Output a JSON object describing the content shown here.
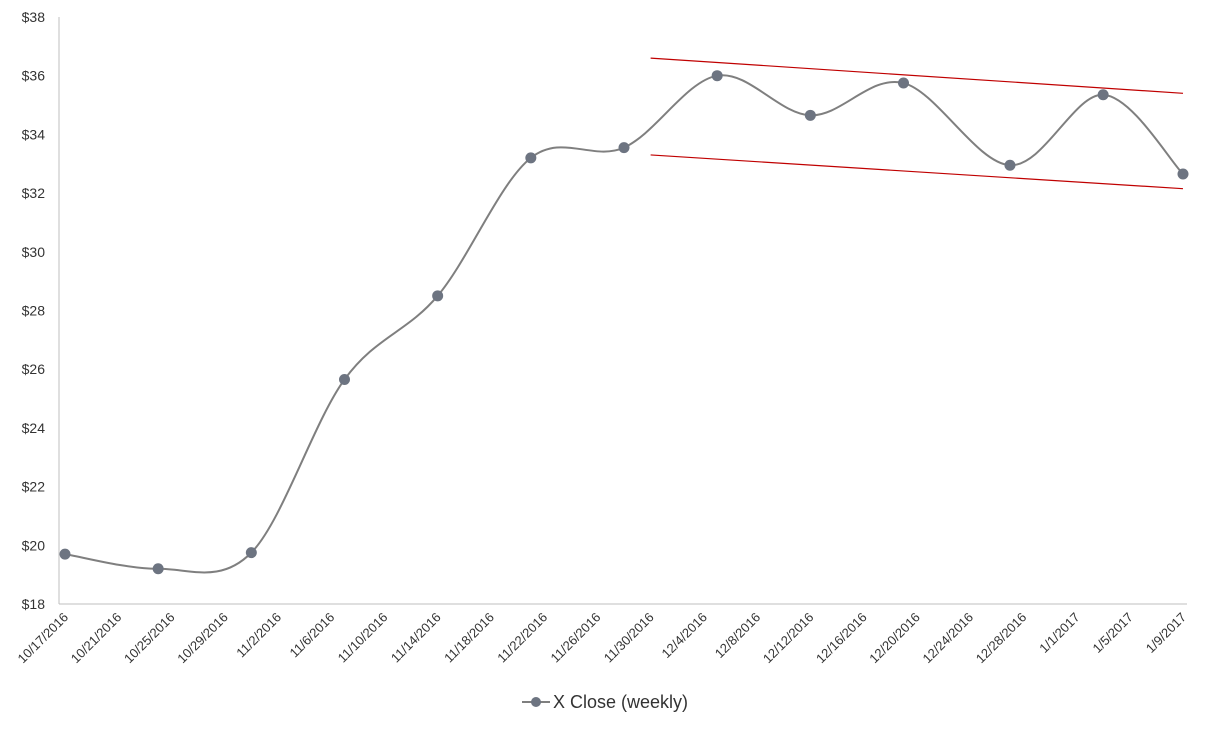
{
  "chart_data": {
    "type": "line",
    "title": "",
    "xlabel": "",
    "ylabel": "",
    "ylim": [
      18,
      38
    ],
    "y_ticks": [
      "$18",
      "$20",
      "$22",
      "$24",
      "$26",
      "$28",
      "$30",
      "$32",
      "$34",
      "$36",
      "$38"
    ],
    "x_range": [
      "2016-10-17",
      "2017-01-09"
    ],
    "x_ticks": [
      "10/17/2016",
      "10/21/2016",
      "10/25/2016",
      "10/29/2016",
      "11/2/2016",
      "11/6/2016",
      "11/10/2016",
      "11/14/2016",
      "11/18/2016",
      "11/22/2016",
      "11/26/2016",
      "11/30/2016",
      "12/4/2016",
      "12/8/2016",
      "12/12/2016",
      "12/16/2016",
      "12/20/2016",
      "12/24/2016",
      "12/28/2016",
      "1/1/2017",
      "1/5/2017",
      "1/9/2017"
    ],
    "grid": false,
    "legend_position": "bottom",
    "series": [
      {
        "name": "X Close (weekly)",
        "color": "#7f7f7f",
        "marker_color": "#6d7481",
        "smooth": true,
        "x": [
          "2016-10-17",
          "2016-10-24",
          "2016-10-31",
          "2016-11-07",
          "2016-11-14",
          "2016-11-21",
          "2016-11-28",
          "2016-12-05",
          "2016-12-12",
          "2016-12-19",
          "2016-12-27",
          "2017-01-03",
          "2017-01-09"
        ],
        "y": [
          19.7,
          19.2,
          19.75,
          25.65,
          28.5,
          33.2,
          33.55,
          36.0,
          34.65,
          35.75,
          32.95,
          35.35,
          32.65
        ]
      }
    ],
    "annotations": [
      {
        "type": "trendline",
        "color": "#c00000",
        "from": {
          "x": "2016-11-30",
          "y": 36.6
        },
        "to": {
          "x": "2017-01-09",
          "y": 35.4
        }
      },
      {
        "type": "trendline",
        "color": "#c00000",
        "from": {
          "x": "2016-11-30",
          "y": 33.3
        },
        "to": {
          "x": "2017-01-09",
          "y": 32.15
        }
      }
    ]
  }
}
